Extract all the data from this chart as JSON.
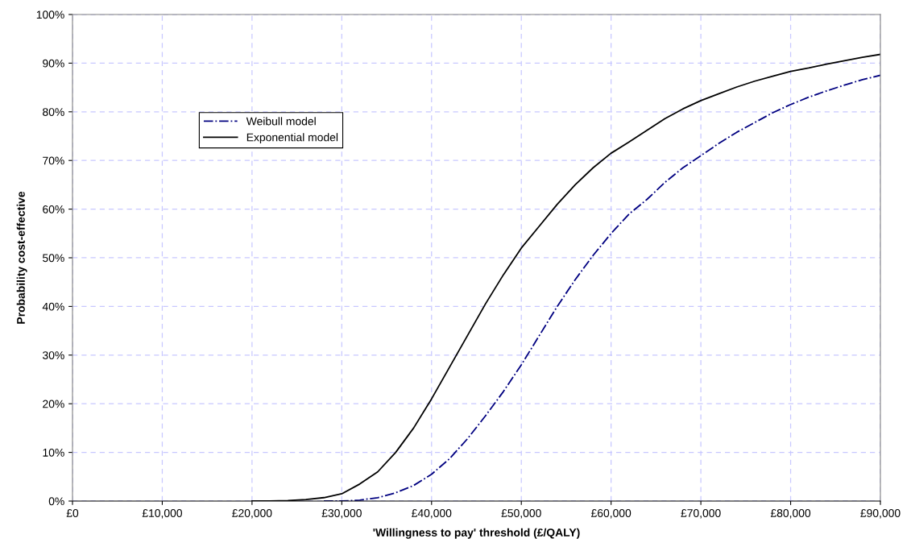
{
  "chart_data": {
    "type": "line",
    "xlabel": "'Willingness to pay' threshold (£/QALY)",
    "ylabel": "Probability cost-effective",
    "x": [
      20000,
      22000,
      24000,
      26000,
      28000,
      30000,
      32000,
      34000,
      36000,
      38000,
      40000,
      42000,
      44000,
      46000,
      48000,
      50000,
      52000,
      54000,
      56000,
      58000,
      60000,
      62000,
      64000,
      66000,
      68000,
      70000,
      72000,
      74000,
      76000,
      78000,
      80000,
      82000,
      84000,
      86000,
      88000,
      90000
    ],
    "series": [
      {
        "name": "Weibull model",
        "color": "#000080",
        "line_style": "dashdot",
        "values": [
          null,
          null,
          null,
          null,
          0,
          0,
          0.2,
          0.7,
          1.7,
          3.2,
          5.5,
          8.7,
          12.8,
          17.5,
          22.5,
          28,
          34,
          40,
          45.5,
          50.5,
          55,
          59,
          62,
          65.5,
          68.5,
          71,
          73.5,
          75.8,
          77.8,
          79.8,
          81.5,
          83,
          84.3,
          85.5,
          86.6,
          87.5
        ]
      },
      {
        "name": "Exponential model",
        "color": "#000000",
        "line_style": "solid",
        "values": [
          0,
          0,
          0.1,
          0.3,
          0.7,
          1.5,
          3.5,
          6,
          10,
          15,
          21,
          27.5,
          34,
          40.5,
          46.5,
          52,
          56.5,
          61,
          65,
          68.5,
          71.5,
          73.8,
          76.2,
          78.6,
          80.6,
          82.3,
          83.7,
          85.1,
          86.3,
          87.3,
          88.3,
          89,
          89.8,
          90.5,
          91.2,
          91.8
        ]
      }
    ],
    "xlim": [
      0,
      90000
    ],
    "ylim": [
      0,
      100
    ],
    "xticks": [
      {
        "value": 0,
        "label": "£0"
      },
      {
        "value": 10000,
        "label": "£10,000"
      },
      {
        "value": 20000,
        "label": "£20,000"
      },
      {
        "value": 30000,
        "label": "£30,000"
      },
      {
        "value": 40000,
        "label": "£40,000"
      },
      {
        "value": 50000,
        "label": "£50,000"
      },
      {
        "value": 60000,
        "label": "£60,000"
      },
      {
        "value": 70000,
        "label": "£70,000"
      },
      {
        "value": 80000,
        "label": "£80,000"
      },
      {
        "value": 90000,
        "label": "£90,000"
      }
    ],
    "yticks": [
      {
        "value": 0,
        "label": "0%"
      },
      {
        "value": 10,
        "label": "10%"
      },
      {
        "value": 20,
        "label": "20%"
      },
      {
        "value": 30,
        "label": "30%"
      },
      {
        "value": 40,
        "label": "40%"
      },
      {
        "value": 50,
        "label": "50%"
      },
      {
        "value": 60,
        "label": "60%"
      },
      {
        "value": 70,
        "label": "70%"
      },
      {
        "value": 80,
        "label": "80%"
      },
      {
        "value": 90,
        "label": "90%"
      },
      {
        "value": 100,
        "label": "100%"
      }
    ],
    "grid": true,
    "legend": "top left"
  }
}
